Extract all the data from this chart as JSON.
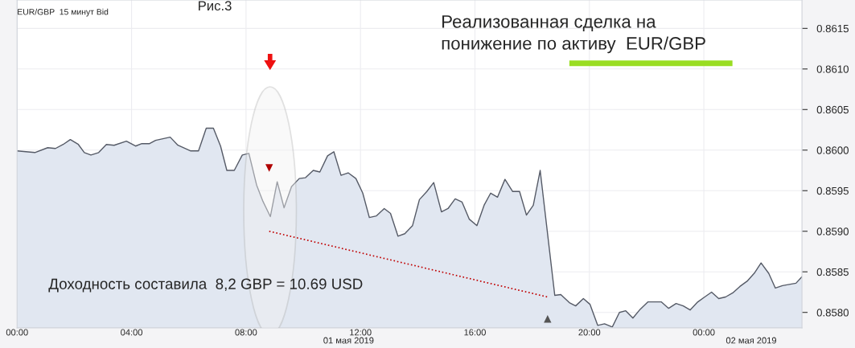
{
  "chart_data": {
    "type": "area",
    "title": "EUR/GBP  15 минут Bid",
    "annotations": [
      "Рис.3",
      "Реализованная сделка на понижение по активу  EUR/GBP",
      "Доходность составила  8,2 GBP = 10.69 USD",
      "01 мая 2019",
      "02 мая 2019"
    ],
    "series": [
      {
        "color": "#555a66",
        "x": [
          0.0,
          0.62,
          1.07,
          1.34,
          1.61,
          1.86,
          2.14,
          2.35,
          2.58,
          2.85,
          3.12,
          3.39,
          3.82,
          4.14,
          4.36,
          4.63,
          4.84,
          5.35,
          5.62,
          6.07,
          6.34,
          6.61,
          6.86,
          7.11,
          7.33,
          7.59,
          7.87,
          8.1,
          8.37,
          8.59,
          8.85,
          9.09,
          9.33,
          9.59,
          9.86,
          10.08,
          10.35,
          10.58,
          10.85,
          11.07,
          11.32,
          11.57,
          11.84,
          12.08,
          12.31,
          12.56,
          12.83,
          13.05,
          13.31,
          13.55,
          13.82,
          14.06,
          14.32,
          14.56,
          14.83,
          15.06,
          15.31,
          15.55,
          15.8,
          16.07,
          16.32,
          16.55,
          16.79,
          17.05,
          17.32,
          17.56,
          17.8,
          18.04,
          18.28,
          18.79,
          19.0,
          19.3,
          19.52,
          19.79,
          20.02,
          20.29,
          20.53,
          20.8,
          21.05,
          21.27,
          21.52,
          21.78,
          22.05,
          22.51,
          22.77,
          23.03,
          23.28,
          23.52,
          23.79,
          24.03,
          24.27,
          24.52,
          24.76,
          25.01,
          25.26,
          25.53,
          25.78,
          26.0,
          26.27,
          26.5,
          26.75,
          27.22,
          27.43
        ],
        "values": [
          0.85999,
          0.85997,
          0.86003,
          0.86002,
          0.86007,
          0.86013,
          0.86007,
          0.85997,
          0.85994,
          0.85997,
          0.86007,
          0.86006,
          0.86011,
          0.86005,
          0.86008,
          0.86008,
          0.86012,
          0.86016,
          0.86006,
          0.85999,
          0.85999,
          0.86027,
          0.86027,
          0.86005,
          0.85975,
          0.85975,
          0.85994,
          0.85996,
          0.85957,
          0.85937,
          0.85918,
          0.85961,
          0.85929,
          0.85955,
          0.85965,
          0.85966,
          0.85975,
          0.85973,
          0.85993,
          0.85998,
          0.85969,
          0.85972,
          0.85965,
          0.85947,
          0.85917,
          0.85919,
          0.85928,
          0.85922,
          0.85894,
          0.85897,
          0.85907,
          0.85939,
          0.85949,
          0.8596,
          0.85924,
          0.85928,
          0.8594,
          0.85936,
          0.85915,
          0.85907,
          0.85932,
          0.85947,
          0.85942,
          0.85964,
          0.85949,
          0.85949,
          0.8592,
          0.85932,
          0.85975,
          0.85821,
          0.85822,
          0.85812,
          0.85808,
          0.85817,
          0.8581,
          0.85784,
          0.85786,
          0.85782,
          0.858,
          0.85802,
          0.85793,
          0.85804,
          0.85813,
          0.85813,
          0.85805,
          0.85811,
          0.85808,
          0.85803,
          0.85813,
          0.85819,
          0.85825,
          0.85817,
          0.85819,
          0.85824,
          0.85832,
          0.85839,
          0.85849,
          0.85861,
          0.85848,
          0.8583,
          0.85833,
          0.85836,
          0.85844
        ]
      },
      {
        "type": "line",
        "color": "#c00000",
        "line_style": "dotted",
        "marker": "none",
        "x": [
          8.81,
          18.54
        ],
        "values": [
          0.859,
          0.85819
        ]
      },
      {
        "type": "scatter",
        "color": "#b00000",
        "marker": "triangle_down",
        "x": [
          8.81
        ],
        "values": [
          0.85978
        ]
      },
      {
        "type": "scatter",
        "color": "#555555",
        "marker": "triangle_up",
        "x": [
          18.54
        ],
        "values": [
          0.85792
        ]
      }
    ],
    "xlim": [
      0,
      27.43
    ],
    "xticks": [
      {
        "value": 0,
        "label": "00:00"
      },
      {
        "value": 4,
        "label": "04:00"
      },
      {
        "value": 8,
        "label": "08:00"
      },
      {
        "value": 12,
        "label": "12:00"
      },
      {
        "value": 16,
        "label": "16:00"
      },
      {
        "value": 20,
        "label": "20:00"
      },
      {
        "value": 24,
        "label": "00:00"
      }
    ],
    "ylim": [
      0.85781,
      0.86185
    ],
    "yticks": [
      {
        "value": 0.858,
        "label": "0.8580"
      },
      {
        "value": 0.8585,
        "label": "0.8585"
      },
      {
        "value": 0.859,
        "label": "0.8590"
      },
      {
        "value": 0.8595,
        "label": "0.8595"
      },
      {
        "value": 0.86,
        "label": "0.8600"
      },
      {
        "value": 0.8605,
        "label": "0.8605"
      },
      {
        "value": 0.861,
        "label": "0.8610"
      },
      {
        "value": 0.8615,
        "label": "0.8615"
      }
    ],
    "grid": true,
    "legend": false
  }
}
